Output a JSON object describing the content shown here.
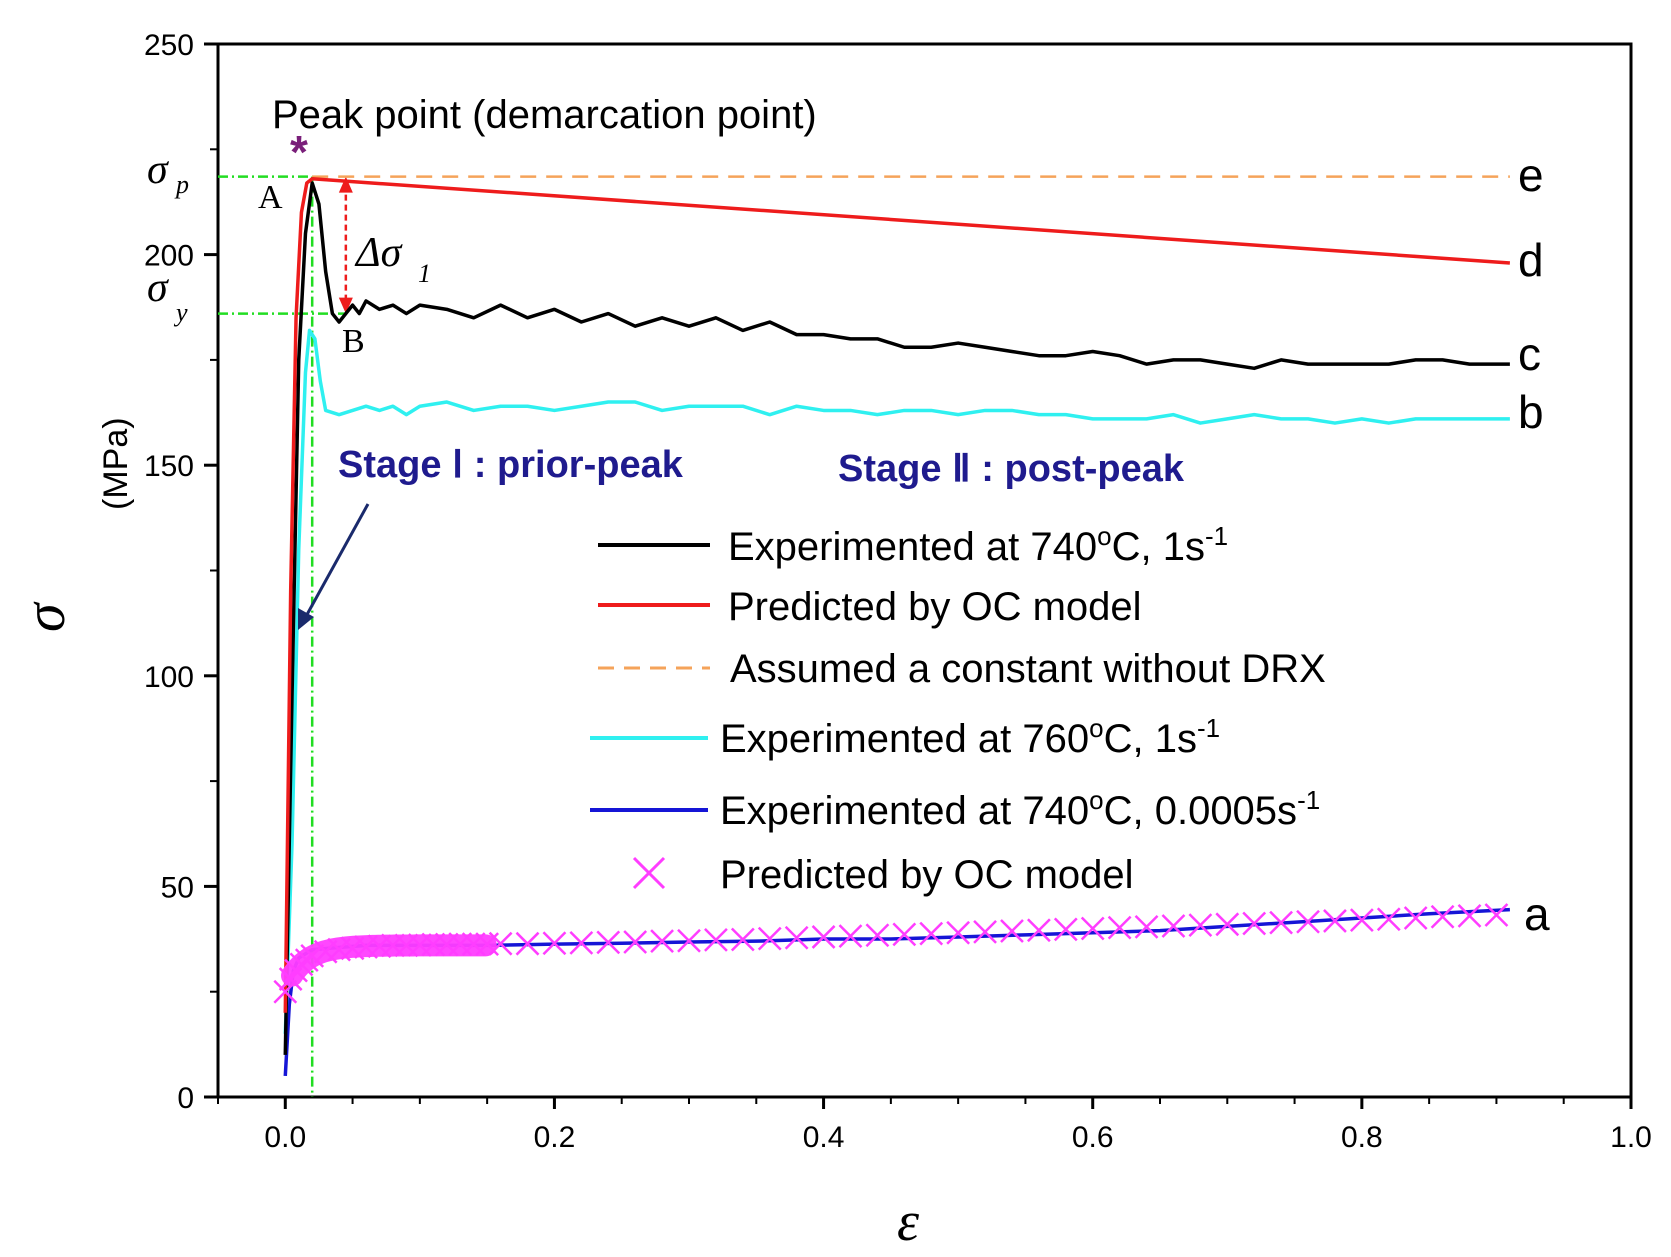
{
  "chart_data": {
    "type": "line",
    "title": "",
    "xlabel": "ε",
    "ylabel": "σ",
    "ylabel_unit": "(MPa)",
    "xlim": [
      -0.05,
      1.0
    ],
    "ylim": [
      0,
      250
    ],
    "x_ticks": [
      0.0,
      0.2,
      0.4,
      0.6,
      0.8,
      1.0
    ],
    "x_tick_labels": [
      "0.0",
      "0.2",
      "0.4",
      "0.6",
      "0.8",
      "1.0"
    ],
    "y_ticks": [
      0,
      50,
      100,
      150,
      200,
      250
    ],
    "y_tick_labels": [
      "0",
      "50",
      "100",
      "150",
      "200",
      "250"
    ],
    "series": [
      {
        "name": "Experimented at 740°C, 1s-1",
        "label": "c",
        "color": "#000000",
        "style": "solid",
        "x": [
          0.0,
          0.005,
          0.01,
          0.015,
          0.02,
          0.025,
          0.03,
          0.035,
          0.04,
          0.045,
          0.05,
          0.055,
          0.06,
          0.07,
          0.08,
          0.09,
          0.1,
          0.12,
          0.14,
          0.16,
          0.18,
          0.2,
          0.22,
          0.24,
          0.26,
          0.28,
          0.3,
          0.32,
          0.34,
          0.36,
          0.38,
          0.4,
          0.42,
          0.44,
          0.46,
          0.48,
          0.5,
          0.52,
          0.54,
          0.56,
          0.58,
          0.6,
          0.62,
          0.64,
          0.66,
          0.68,
          0.7,
          0.72,
          0.74,
          0.76,
          0.78,
          0.8,
          0.82,
          0.84,
          0.86,
          0.88,
          0.9,
          0.91
        ],
        "y": [
          10,
          95,
          175,
          205,
          217,
          212,
          196,
          186,
          184,
          186,
          188,
          186,
          189,
          187,
          188,
          186,
          188,
          187,
          185,
          188,
          185,
          187,
          184,
          186,
          183,
          185,
          183,
          185,
          182,
          184,
          181,
          181,
          180,
          180,
          178,
          178,
          179,
          178,
          177,
          176,
          176,
          177,
          176,
          174,
          175,
          175,
          174,
          173,
          175,
          174,
          174,
          174,
          174,
          175,
          175,
          174,
          174,
          174
        ]
      },
      {
        "name": "Predicted by OC model",
        "label": "d",
        "color": "#ee1c1c",
        "style": "solid",
        "x": [
          0.0,
          0.004,
          0.008,
          0.012,
          0.016,
          0.02,
          0.91
        ],
        "y": [
          20,
          120,
          185,
          210,
          217,
          218,
          198
        ]
      },
      {
        "name": "Assumed a constant without DRX",
        "label": "e",
        "color": "#f5a35a",
        "style": "dashed",
        "x": [
          0.02,
          0.91
        ],
        "y": [
          218.5,
          218.5
        ]
      },
      {
        "name": "Experimented at 760°C, 1s-1",
        "label": "b",
        "color": "#2ff0f0",
        "style": "solid",
        "x": [
          0.0,
          0.005,
          0.01,
          0.015,
          0.018,
          0.022,
          0.026,
          0.03,
          0.04,
          0.05,
          0.06,
          0.07,
          0.08,
          0.09,
          0.1,
          0.12,
          0.14,
          0.16,
          0.18,
          0.2,
          0.22,
          0.24,
          0.26,
          0.28,
          0.3,
          0.32,
          0.34,
          0.36,
          0.38,
          0.4,
          0.42,
          0.44,
          0.46,
          0.48,
          0.5,
          0.52,
          0.54,
          0.56,
          0.58,
          0.6,
          0.62,
          0.64,
          0.66,
          0.68,
          0.7,
          0.72,
          0.74,
          0.76,
          0.78,
          0.8,
          0.82,
          0.84,
          0.86,
          0.88,
          0.9,
          0.91
        ],
        "y": [
          15,
          60,
          130,
          172,
          182,
          180,
          170,
          163,
          162,
          163,
          164,
          163,
          164,
          162,
          164,
          165,
          163,
          164,
          164,
          163,
          164,
          165,
          165,
          163,
          164,
          164,
          164,
          162,
          164,
          163,
          163,
          162,
          163,
          163,
          162,
          163,
          163,
          162,
          162,
          161,
          161,
          161,
          162,
          160,
          161,
          162,
          161,
          161,
          160,
          161,
          160,
          161,
          161,
          161,
          161,
          161
        ]
      },
      {
        "name": "Experimented at 740°C, 0.0005s-1",
        "label": "a",
        "color": "#1515d6",
        "style": "solid",
        "x": [
          0.0,
          0.003,
          0.006,
          0.01,
          0.015,
          0.02,
          0.04,
          0.06,
          0.1,
          0.15,
          0.2,
          0.25,
          0.3,
          0.35,
          0.4,
          0.45,
          0.5,
          0.55,
          0.6,
          0.65,
          0.7,
          0.75,
          0.8,
          0.85,
          0.91
        ],
        "y": [
          5,
          22,
          30,
          33,
          34,
          35,
          35.5,
          36,
          36,
          36,
          36.3,
          36.5,
          36.8,
          37,
          37.5,
          37.5,
          38,
          38.5,
          39,
          39.5,
          40.5,
          41.5,
          42.5,
          43.5,
          44.5
        ]
      },
      {
        "name": "Predicted by OC model",
        "label": "",
        "color": "#ff3dff",
        "style": "marker-x",
        "x": [
          0.0,
          0.004,
          0.008,
          0.012,
          0.016,
          0.02,
          0.03,
          0.04,
          0.05,
          0.06,
          0.07,
          0.08,
          0.09,
          0.1,
          0.11,
          0.12,
          0.13,
          0.14,
          0.15,
          0.16,
          0.18,
          0.2,
          0.22,
          0.24,
          0.26,
          0.28,
          0.3,
          0.32,
          0.34,
          0.36,
          0.38,
          0.4,
          0.42,
          0.44,
          0.46,
          0.48,
          0.5,
          0.52,
          0.54,
          0.56,
          0.58,
          0.6,
          0.62,
          0.64,
          0.66,
          0.68,
          0.7,
          0.72,
          0.74,
          0.76,
          0.78,
          0.8,
          0.82,
          0.84,
          0.86,
          0.88,
          0.9
        ],
        "y": [
          25,
          28,
          30,
          31.5,
          32.5,
          33.5,
          34.5,
          35,
          35.3,
          35.6,
          35.8,
          36,
          36,
          36.1,
          36.2,
          36.2,
          36.3,
          36.3,
          36.3,
          36.4,
          36.4,
          36.5,
          36.6,
          36.7,
          36.8,
          37,
          37.1,
          37.3,
          37.4,
          37.6,
          37.8,
          38,
          38.2,
          38.4,
          38.6,
          38.8,
          39,
          39.2,
          39.4,
          39.6,
          39.8,
          40,
          40.2,
          40.4,
          40.6,
          40.8,
          41,
          41.2,
          41.4,
          41.6,
          41.8,
          42,
          42.2,
          42.5,
          42.8,
          43,
          43.2
        ]
      }
    ],
    "annotations": {
      "peak_label": "Peak point (demarcation point)",
      "peak_marker": "*",
      "point_A": "A",
      "point_B": "B",
      "sigma_p": "σ",
      "sigma_p_sub": "p",
      "sigma_y": "σ",
      "sigma_y_sub": "y",
      "delta_sigma": "Δσ",
      "delta_sigma_sub": "1",
      "stage1": "Stage Ⅰ : prior-peak",
      "stage2": "Stage Ⅱ : post-peak",
      "sigma_p_value": 218.5,
      "sigma_y_value": 186,
      "peak_strain": 0.02
    },
    "curve_labels": [
      "e",
      "d",
      "c",
      "b",
      "a"
    ],
    "legend": [
      {
        "text_main": "Experimented at 740",
        "sup1": "o",
        "text_mid": "C, 1s",
        "sup2": "-1",
        "color": "#000000",
        "style": "solid"
      },
      {
        "text_main": "Predicted by OC model",
        "color": "#ee1c1c",
        "style": "solid"
      },
      {
        "text_main": "Assumed a constant without DRX",
        "color": "#f5a35a",
        "style": "dashed"
      },
      {
        "text_main": "Experimented at 760",
        "sup1": "o",
        "text_mid": "C, 1s",
        "sup2": "-1",
        "color": "#2ff0f0",
        "style": "solid"
      },
      {
        "text_main": "Experimented at 740",
        "sup1": "o",
        "text_mid": "C, 0.0005s",
        "sup2": "-1",
        "color": "#1515d6",
        "style": "solid"
      },
      {
        "text_main": "Predicted by OC model",
        "color": "#ff3dff",
        "style": "marker-x"
      }
    ]
  },
  "colors": {
    "guide_green": "#22dd22",
    "delta_red": "#ee1c1c",
    "peak_purple": "#7a1f7a",
    "stage_blue": "#1f1b8e",
    "arrow_navy": "#1a2a6c"
  }
}
